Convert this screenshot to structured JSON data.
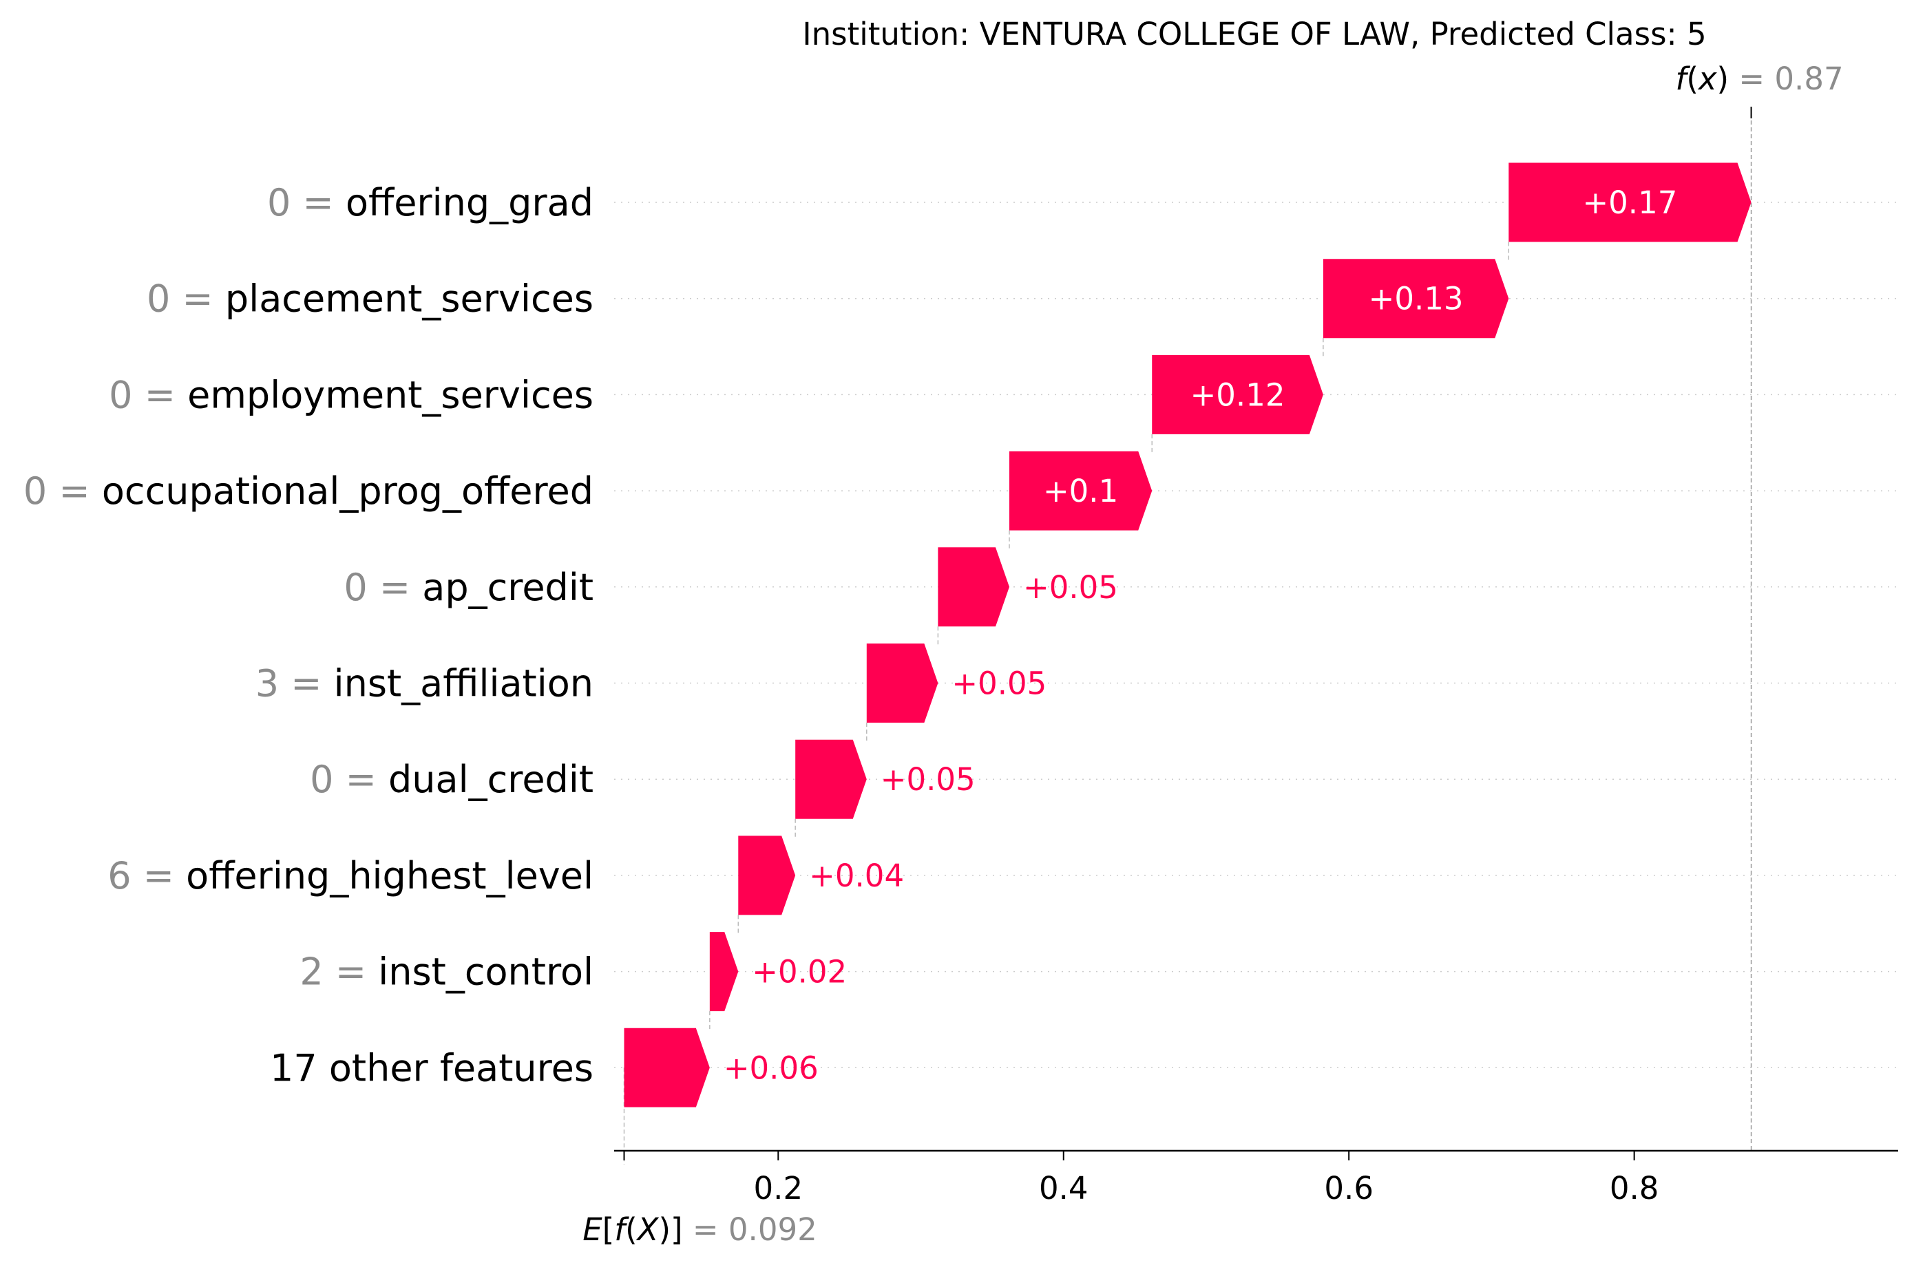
{
  "chart_data": {
    "type": "waterfall",
    "title": "Institution: VENTURA COLLEGE OF LAW, Predicted Class: 5",
    "base_value": 0.092,
    "base_value_label": "0.092",
    "output_value": 0.87,
    "output_value_label": "0.87",
    "base_expr": {
      "e": "E",
      "lb": "[",
      "f": "f",
      "lp": "(",
      "X": "X",
      "rp": ")",
      "rb": "]",
      "eq": " = "
    },
    "output_expr": {
      "f": "f",
      "lp": "(",
      "x": "x",
      "rp": ")",
      "eq": " = "
    },
    "features": [
      {
        "value_text": "0",
        "name": "offering_grad",
        "contribution": 0.17,
        "label": "+0.17"
      },
      {
        "value_text": "0",
        "name": "placement_services",
        "contribution": 0.13,
        "label": "+0.13"
      },
      {
        "value_text": "0",
        "name": "employment_services",
        "contribution": 0.12,
        "label": "+0.12"
      },
      {
        "value_text": "0",
        "name": "occupational_prog_offered",
        "contribution": 0.1,
        "label": "+0.1"
      },
      {
        "value_text": "0",
        "name": "ap_credit",
        "contribution": 0.05,
        "label": "+0.05"
      },
      {
        "value_text": "3",
        "name": "inst_affiliation",
        "contribution": 0.05,
        "label": "+0.05"
      },
      {
        "value_text": "0",
        "name": "dual_credit",
        "contribution": 0.05,
        "label": "+0.05"
      },
      {
        "value_text": "6",
        "name": "offering_highest_level",
        "contribution": 0.04,
        "label": "+0.04"
      },
      {
        "value_text": "2",
        "name": "inst_control",
        "contribution": 0.02,
        "label": "+0.02"
      },
      {
        "value_text": "",
        "name": "17 other features",
        "contribution": 0.06,
        "label": "+0.06"
      }
    ],
    "x_ticks": [
      {
        "value": 0.2,
        "label": "0.2"
      },
      {
        "value": 0.4,
        "label": "0.4"
      },
      {
        "value": 0.6,
        "label": "0.6"
      },
      {
        "value": 0.8,
        "label": "0.8"
      }
    ],
    "xlim": [
      0.085,
      0.985
    ],
    "colors": {
      "positive": "#ff0051",
      "grey_text": "#8c8c8c",
      "grid": "#cccccc",
      "guide": "#bbbbbb"
    }
  }
}
